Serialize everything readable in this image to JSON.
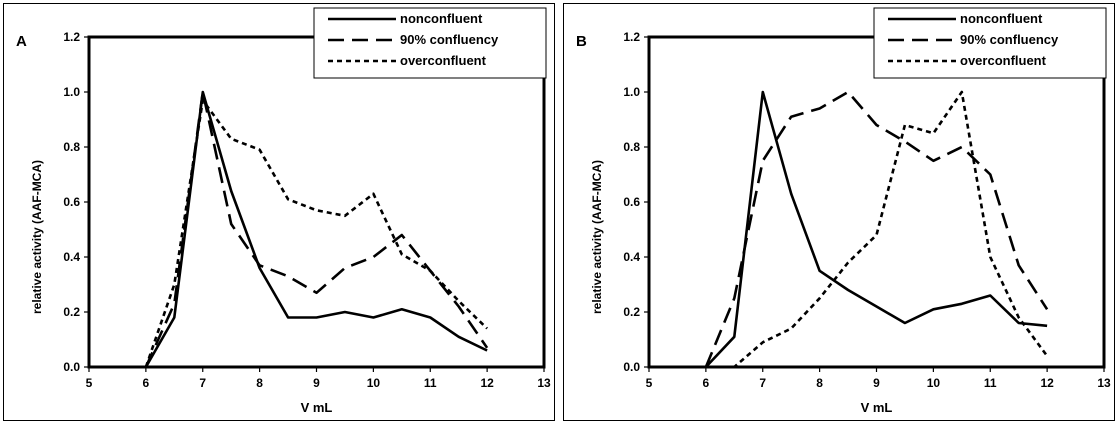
{
  "chart_data": [
    {
      "type": "line",
      "panel_label": "A",
      "xlabel": "V mL",
      "ylabel": "relative activity (AAF-MCA)",
      "xlim": [
        5,
        13
      ],
      "ylim": [
        0,
        1.2
      ],
      "x_ticks": [
        "5",
        "6",
        "7",
        "8",
        "9",
        "10",
        "11",
        "12",
        "13"
      ],
      "y_ticks": [
        "0.0",
        "0.2",
        "0.4",
        "0.6",
        "0.8",
        "1.0",
        "1.2"
      ],
      "grid": false,
      "legend_position": "top-right",
      "series": [
        {
          "name": "nonconfluent",
          "style": "solid",
          "x": [
            6,
            6.5,
            7,
            7.5,
            8,
            8.5,
            9,
            9.5,
            10,
            10.5,
            11,
            11.5,
            12
          ],
          "y": [
            0,
            0.18,
            1.0,
            0.64,
            0.36,
            0.18,
            0.18,
            0.2,
            0.18,
            0.21,
            0.18,
            0.11,
            0.06
          ]
        },
        {
          "name": "90% confluency",
          "style": "long-dash",
          "x": [
            6,
            6.5,
            7,
            7.5,
            8,
            8.5,
            9,
            9.5,
            10,
            10.5,
            11,
            11.5,
            12
          ],
          "y": [
            0,
            0.23,
            1.0,
            0.52,
            0.37,
            0.33,
            0.27,
            0.36,
            0.4,
            0.48,
            0.35,
            0.22,
            0.07
          ]
        },
        {
          "name": "overconfluent",
          "style": "short-dash",
          "x": [
            6,
            6.5,
            7,
            7.5,
            8,
            8.5,
            9,
            9.5,
            10,
            10.5,
            11,
            11.5,
            12
          ],
          "y": [
            0,
            0.3,
            0.97,
            0.83,
            0.79,
            0.61,
            0.57,
            0.55,
            0.63,
            0.41,
            0.35,
            0.24,
            0.14
          ]
        }
      ]
    },
    {
      "type": "line",
      "panel_label": "B",
      "xlabel": "V mL",
      "ylabel": "relative activity (AAF-MCA)",
      "xlim": [
        5,
        13
      ],
      "ylim": [
        0,
        1.2
      ],
      "x_ticks": [
        "5",
        "6",
        "7",
        "8",
        "9",
        "10",
        "11",
        "12",
        "13"
      ],
      "y_ticks": [
        "0.0",
        "0.2",
        "0.4",
        "0.6",
        "0.8",
        "1.0",
        "1.2"
      ],
      "grid": false,
      "legend_position": "top-right",
      "series": [
        {
          "name": "nonconfluent",
          "style": "solid",
          "x": [
            6,
            6.5,
            7,
            7.5,
            8,
            8.5,
            9,
            9.5,
            10,
            10.5,
            11,
            11.5,
            12
          ],
          "y": [
            0,
            0.11,
            1.0,
            0.63,
            0.35,
            0.28,
            0.22,
            0.16,
            0.21,
            0.23,
            0.26,
            0.16,
            0.15
          ]
        },
        {
          "name": "90% confluency",
          "style": "long-dash",
          "x": [
            6,
            6.5,
            7,
            7.5,
            8,
            8.5,
            9,
            9.5,
            10,
            10.5,
            11,
            11.5,
            12
          ],
          "y": [
            0,
            0.25,
            0.75,
            0.91,
            0.94,
            1.0,
            0.88,
            0.82,
            0.75,
            0.8,
            0.7,
            0.37,
            0.21
          ]
        },
        {
          "name": "overconfluent",
          "style": "short-dash",
          "x": [
            6,
            6.5,
            7,
            7.5,
            8,
            8.5,
            9,
            9.5,
            10,
            10.5,
            11,
            11.5,
            12
          ],
          "y": [
            0,
            0,
            0.09,
            0.14,
            0.25,
            0.38,
            0.48,
            0.88,
            0.85,
            1.0,
            0.4,
            0.18,
            0.04
          ]
        }
      ]
    }
  ]
}
